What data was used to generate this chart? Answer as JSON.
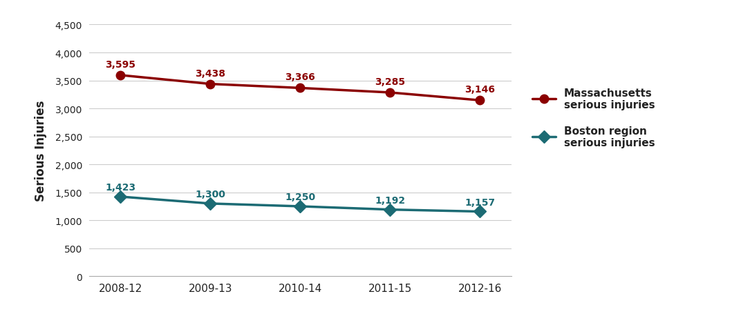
{
  "x_labels": [
    "2008-12",
    "2009-13",
    "2010-14",
    "2011-15",
    "2012-16"
  ],
  "x_positions": [
    0,
    1,
    2,
    3,
    4
  ],
  "mass_values": [
    3595,
    3438,
    3366,
    3285,
    3146
  ],
  "boston_values": [
    1423,
    1300,
    1250,
    1192,
    1157
  ],
  "mass_color": "#8B0000",
  "boston_color": "#1C6B74",
  "mass_label": "Massachusetts\nserious injuries",
  "boston_label": "Boston region\nserious injuries",
  "ylabel": "Serious Injuries",
  "ylim": [
    0,
    4500
  ],
  "yticks": [
    0,
    500,
    1000,
    1500,
    2000,
    2500,
    3000,
    3500,
    4000,
    4500
  ],
  "background_color": "#ffffff",
  "grid_color": "#cccccc",
  "annotation_color_mass": "#8B0000",
  "annotation_color_boston": "#1C6B74",
  "text_color": "#222222"
}
